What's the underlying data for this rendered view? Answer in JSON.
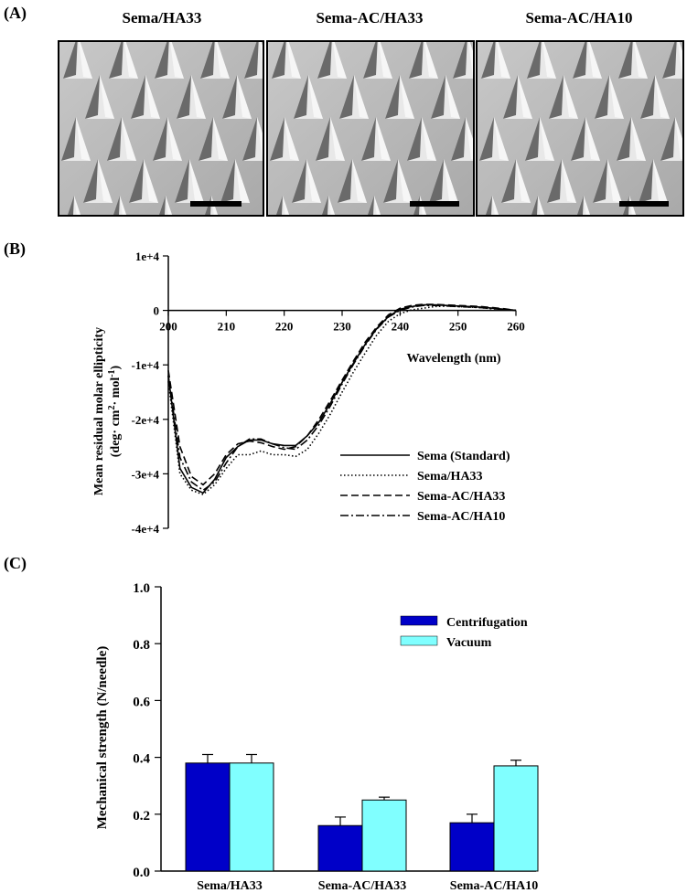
{
  "panels": {
    "a_label": "(A)",
    "b_label": "(B)",
    "c_label": "(C)"
  },
  "sem_images": [
    {
      "title": "Sema/HA33"
    },
    {
      "title": "Sema-AC/HA33"
    },
    {
      "title": "Sema-AC/HA10"
    }
  ],
  "chart_data": [
    {
      "type": "line",
      "title": "",
      "xlabel": "Wavelength (nm)",
      "ylabel_line1": "Mean residual molar ellipticity",
      "ylabel_line2": "(deg· cm",
      "ylabel_sup1": "2",
      "ylabel_mid": "· mol",
      "ylabel_sup2": "-1",
      "ylabel_end": ")",
      "xlim": [
        200,
        260
      ],
      "ylim": [
        -40000,
        10000
      ],
      "x_ticks": [
        200,
        210,
        220,
        230,
        240,
        250,
        260
      ],
      "x_tick_labels": [
        "200",
        "210",
        "220",
        "230",
        "240",
        "250",
        "260"
      ],
      "y_ticks": [
        10000,
        0,
        -10000,
        -20000,
        -30000,
        -40000
      ],
      "y_tick_labels": [
        "1e+4",
        "0",
        "-1e+4",
        "-2e+4",
        "-3e+4",
        "-4e+4"
      ],
      "legend": [
        "Sema (Standard)",
        "Sema/HA33",
        "Sema-AC/HA33",
        "Sema-AC/HA10"
      ],
      "x": [
        200,
        202,
        204,
        206,
        208,
        210,
        212,
        214,
        216,
        218,
        220,
        222,
        224,
        226,
        228,
        230,
        232,
        234,
        236,
        238,
        240,
        242,
        244,
        246,
        248,
        250,
        252,
        254,
        256,
        258,
        260
      ],
      "series": [
        {
          "name": "Sema (Standard)",
          "style": "solid",
          "values": [
            -12000,
            -29000,
            -32500,
            -33500,
            -31000,
            -27000,
            -25000,
            -23800,
            -23800,
            -24500,
            -24800,
            -24800,
            -23000,
            -20500,
            -17000,
            -13200,
            -9600,
            -6200,
            -3300,
            -1100,
            200,
            700,
            1000,
            1000,
            900,
            800,
            700,
            600,
            400,
            200,
            0
          ]
        },
        {
          "name": "Sema/HA33",
          "style": "dotted",
          "values": [
            -13000,
            -30000,
            -33000,
            -33800,
            -32000,
            -29000,
            -26500,
            -26500,
            -25800,
            -26500,
            -26500,
            -26800,
            -25500,
            -22500,
            -19000,
            -15000,
            -11200,
            -7800,
            -4500,
            -2000,
            -600,
            100,
            400,
            700,
            800,
            700,
            600,
            500,
            300,
            200,
            0
          ]
        },
        {
          "name": "Sema-AC/HA33",
          "style": "dashed",
          "values": [
            -11000,
            -25000,
            -30500,
            -32000,
            -30000,
            -26500,
            -24500,
            -24000,
            -24300,
            -25000,
            -25500,
            -25000,
            -23000,
            -20000,
            -16500,
            -12800,
            -9200,
            -5800,
            -3000,
            -800,
            400,
            900,
            1100,
            1100,
            1000,
            900,
            800,
            700,
            500,
            300,
            0
          ]
        },
        {
          "name": "Sema-AC/HA10",
          "style": "dashdot",
          "values": [
            -12000,
            -27000,
            -31500,
            -33000,
            -31500,
            -28000,
            -25000,
            -23600,
            -23600,
            -24500,
            -25200,
            -25500,
            -23800,
            -21000,
            -17500,
            -13500,
            -9800,
            -6400,
            -3400,
            -1200,
            0,
            600,
            900,
            900,
            800,
            700,
            600,
            500,
            300,
            200,
            0
          ]
        }
      ]
    },
    {
      "type": "bar",
      "title": "",
      "xlabel": "",
      "ylabel": "Mechanical strength (N/needle)",
      "ylim": [
        0,
        1.0
      ],
      "y_ticks": [
        0,
        0.2,
        0.4,
        0.6,
        0.8,
        1.0
      ],
      "y_tick_labels": [
        "0.0",
        "0.2",
        "0.4",
        "0.6",
        "0.8",
        "1.0"
      ],
      "categories": [
        "Sema/HA33",
        "Sema-AC/HA33",
        "Sema-AC/HA10"
      ],
      "series": [
        {
          "name": "Centrifugation",
          "color": "#0000c8",
          "values": [
            0.38,
            0.16,
            0.17
          ],
          "errors": [
            0.03,
            0.03,
            0.03
          ]
        },
        {
          "name": "Vacuum",
          "color": "#80ffff",
          "values": [
            0.38,
            0.25,
            0.37
          ],
          "errors": [
            0.03,
            0.01,
            0.02
          ]
        }
      ],
      "legend_position": "top-right"
    }
  ]
}
